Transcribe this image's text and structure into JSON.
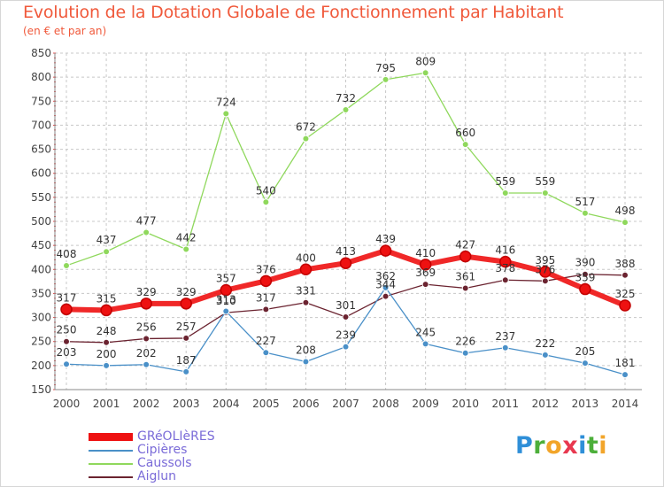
{
  "title": "Evolution de la Dotation Globale de Fonctionnement par Habitant",
  "subtitle": "(en € et par an)",
  "logo": {
    "letters": [
      "P",
      "r",
      "o",
      "x",
      "i",
      "t",
      "i"
    ],
    "colors": [
      "#2f8fd8",
      "#4caf3a",
      "#f2a52a",
      "#e8384f",
      "#2f8fd8",
      "#4caf3a",
      "#f2a52a"
    ]
  },
  "chart_data": {
    "type": "line",
    "x": [
      "2000",
      "2001",
      "2002",
      "2003",
      "2004",
      "2005",
      "2006",
      "2007",
      "2008",
      "2009",
      "2010",
      "2011",
      "2012",
      "2013",
      "2014"
    ],
    "ylim": [
      150,
      850
    ],
    "yticks": [
      150,
      200,
      250,
      300,
      350,
      400,
      450,
      500,
      550,
      600,
      650,
      700,
      750,
      800,
      850
    ],
    "grid": true,
    "legend_position": "bottom-left",
    "series": [
      {
        "name": "GRéOLIèRES",
        "color": "#ee1111",
        "values": [
          317,
          315,
          329,
          329,
          357,
          376,
          400,
          413,
          439,
          410,
          427,
          416,
          395,
          359,
          325
        ],
        "labels": [
          "317",
          "315",
          "329",
          "329",
          "357",
          "376",
          "400",
          "413",
          "439",
          "410",
          "427",
          "416",
          "395",
          "359",
          "325"
        ]
      },
      {
        "name": "Cipières",
        "color": "#4a90c8",
        "values": [
          203,
          200,
          202,
          187,
          313,
          227,
          208,
          239,
          362,
          245,
          226,
          237,
          222,
          205,
          181
        ],
        "labels": [
          "203",
          "200",
          "202",
          "187",
          "313",
          "227",
          "208",
          "239",
          "362",
          "245",
          "226",
          "237",
          "222",
          "205",
          "181"
        ]
      },
      {
        "name": "Caussols",
        "color": "#8fd85c",
        "values": [
          408,
          437,
          477,
          442,
          724,
          540,
          672,
          732,
          795,
          809,
          660,
          559,
          559,
          517,
          498
        ],
        "labels": [
          "408",
          "437",
          "477",
          "442",
          "724",
          "540",
          "672",
          "732",
          "795",
          "809",
          "660",
          "559",
          "559",
          "517",
          "498"
        ]
      },
      {
        "name": "Aiglun",
        "color": "#6b2330",
        "values": [
          250,
          248,
          256,
          257,
          310,
          317,
          331,
          301,
          344,
          369,
          361,
          378,
          376,
          390,
          388
        ],
        "labels": [
          "250",
          "248",
          "256",
          "257",
          "310",
          "317",
          "331",
          "301",
          "344",
          "369",
          "361",
          "378",
          "376",
          "390",
          "388"
        ]
      }
    ]
  }
}
